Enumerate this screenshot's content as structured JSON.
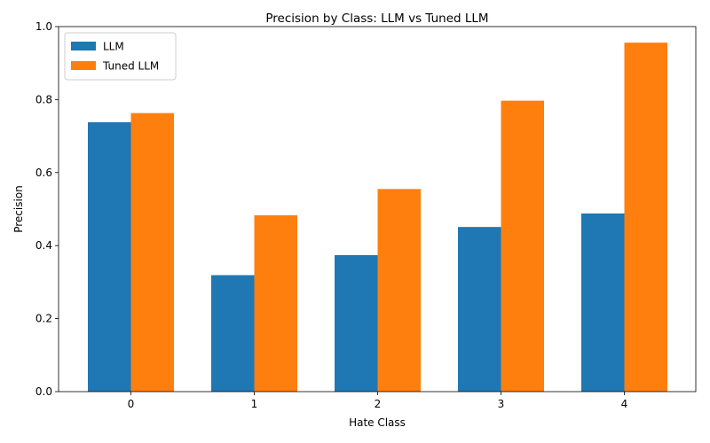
{
  "chart_data": {
    "type": "bar",
    "title": "Precision by Class: LLM vs Tuned LLM",
    "xlabel": "Hate Class",
    "ylabel": "Precision",
    "categories": [
      "0",
      "1",
      "2",
      "3",
      "4"
    ],
    "ylim": [
      0,
      1.0
    ],
    "yticks": [
      "0.0",
      "0.2",
      "0.4",
      "0.6",
      "0.8",
      "1.0"
    ],
    "series": [
      {
        "name": "LLM",
        "color": "#1f77b4",
        "values": [
          0.738,
          0.319,
          0.374,
          0.451,
          0.488
        ]
      },
      {
        "name": "Tuned LLM",
        "color": "#ff7f0e",
        "values": [
          0.763,
          0.483,
          0.555,
          0.797,
          0.956
        ]
      }
    ],
    "legend_position": "top-left",
    "grid": false
  }
}
